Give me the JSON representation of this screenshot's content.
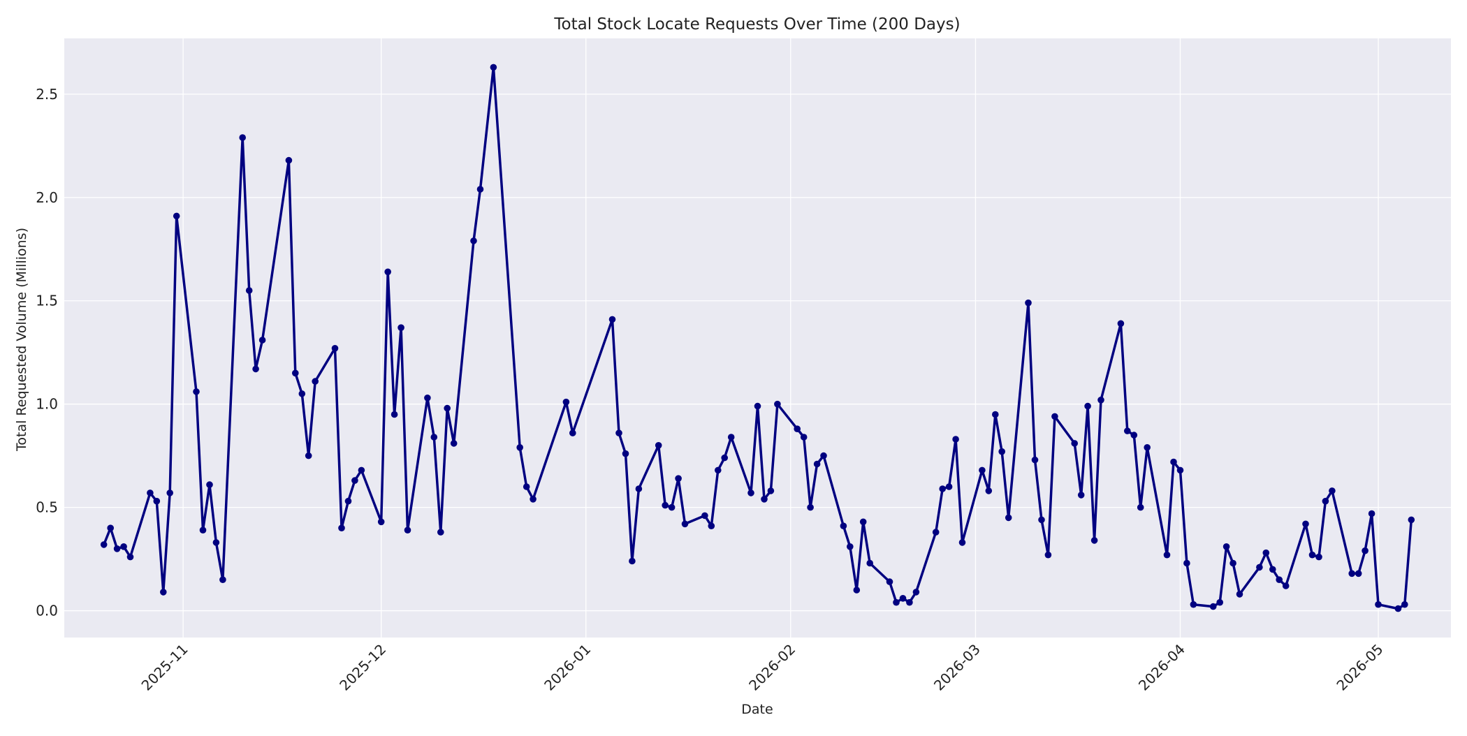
{
  "chart_data": {
    "type": "line",
    "title": "Total Stock Locate Requests Over Time (200 Days)",
    "xlabel": "Date",
    "ylabel": "Total Requested Volume (Millions)",
    "xlim": [
      "2025-10-14",
      "2026-05-12"
    ],
    "ylim": [
      -0.13,
      2.77
    ],
    "x_ticks": [
      "2025-11",
      "2025-12",
      "2026-01",
      "2026-02",
      "2026-03",
      "2026-04",
      "2026-05"
    ],
    "y_ticks": [
      "0.0",
      "0.5",
      "1.0",
      "1.5",
      "2.0",
      "2.5"
    ],
    "grid": true,
    "legend": "none",
    "colors": {
      "line": "#000080",
      "plot_bg": "#eaeaf2",
      "grid": "#ffffff"
    },
    "series": [
      {
        "points": [
          [
            "2025-10-20",
            0.32
          ],
          [
            "2025-10-21",
            0.4
          ],
          [
            "2025-10-22",
            0.3
          ],
          [
            "2025-10-23",
            0.31
          ],
          [
            "2025-10-24",
            0.26
          ],
          [
            "2025-10-27",
            0.57
          ],
          [
            "2025-10-28",
            0.53
          ],
          [
            "2025-10-29",
            0.09
          ],
          [
            "2025-10-30",
            0.57
          ],
          [
            "2025-10-31",
            1.91
          ],
          [
            "2025-11-03",
            1.06
          ],
          [
            "2025-11-04",
            0.39
          ],
          [
            "2025-11-05",
            0.61
          ],
          [
            "2025-11-06",
            0.33
          ],
          [
            "2025-11-07",
            0.15
          ],
          [
            "2025-11-10",
            2.29
          ],
          [
            "2025-11-11",
            1.55
          ],
          [
            "2025-11-12",
            1.17
          ],
          [
            "2025-11-13",
            1.31
          ],
          [
            "2025-11-17",
            2.18
          ],
          [
            "2025-11-18",
            1.15
          ],
          [
            "2025-11-19",
            1.05
          ],
          [
            "2025-11-20",
            0.75
          ],
          [
            "2025-11-21",
            1.11
          ],
          [
            "2025-11-24",
            1.27
          ],
          [
            "2025-11-25",
            0.4
          ],
          [
            "2025-11-26",
            0.53
          ],
          [
            "2025-11-27",
            0.63
          ],
          [
            "2025-11-28",
            0.68
          ],
          [
            "2025-12-01",
            0.43
          ],
          [
            "2025-12-02",
            1.64
          ],
          [
            "2025-12-03",
            0.95
          ],
          [
            "2025-12-04",
            1.37
          ],
          [
            "2025-12-05",
            0.39
          ],
          [
            "2025-12-08",
            1.03
          ],
          [
            "2025-12-09",
            0.84
          ],
          [
            "2025-12-10",
            0.38
          ],
          [
            "2025-12-11",
            0.98
          ],
          [
            "2025-12-12",
            0.81
          ],
          [
            "2025-12-15",
            1.79
          ],
          [
            "2025-12-16",
            2.04
          ],
          [
            "2025-12-18",
            2.63
          ],
          [
            "2025-12-22",
            0.79
          ],
          [
            "2025-12-23",
            0.6
          ],
          [
            "2025-12-24",
            0.54
          ],
          [
            "2025-12-29",
            1.01
          ],
          [
            "2025-12-30",
            0.86
          ],
          [
            "2026-01-05",
            1.41
          ],
          [
            "2026-01-06",
            0.86
          ],
          [
            "2026-01-07",
            0.76
          ],
          [
            "2026-01-08",
            0.24
          ],
          [
            "2026-01-09",
            0.59
          ],
          [
            "2026-01-12",
            0.8
          ],
          [
            "2026-01-13",
            0.51
          ],
          [
            "2026-01-14",
            0.5
          ],
          [
            "2026-01-15",
            0.64
          ],
          [
            "2026-01-16",
            0.42
          ],
          [
            "2026-01-19",
            0.46
          ],
          [
            "2026-01-20",
            0.41
          ],
          [
            "2026-01-21",
            0.68
          ],
          [
            "2026-01-22",
            0.74
          ],
          [
            "2026-01-23",
            0.84
          ],
          [
            "2026-01-26",
            0.57
          ],
          [
            "2026-01-27",
            0.99
          ],
          [
            "2026-01-28",
            0.54
          ],
          [
            "2026-01-29",
            0.58
          ],
          [
            "2026-01-30",
            1.0
          ],
          [
            "2026-02-02",
            0.88
          ],
          [
            "2026-02-03",
            0.84
          ],
          [
            "2026-02-04",
            0.5
          ],
          [
            "2026-02-05",
            0.71
          ],
          [
            "2026-02-06",
            0.75
          ],
          [
            "2026-02-09",
            0.41
          ],
          [
            "2026-02-10",
            0.31
          ],
          [
            "2026-02-11",
            0.1
          ],
          [
            "2026-02-12",
            0.43
          ],
          [
            "2026-02-13",
            0.23
          ],
          [
            "2026-02-16",
            0.14
          ],
          [
            "2026-02-17",
            0.04
          ],
          [
            "2026-02-18",
            0.06
          ],
          [
            "2026-02-19",
            0.04
          ],
          [
            "2026-02-20",
            0.09
          ],
          [
            "2026-02-23",
            0.38
          ],
          [
            "2026-02-24",
            0.59
          ],
          [
            "2026-02-25",
            0.6
          ],
          [
            "2026-02-26",
            0.83
          ],
          [
            "2026-02-27",
            0.33
          ],
          [
            "2026-03-02",
            0.68
          ],
          [
            "2026-03-03",
            0.58
          ],
          [
            "2026-03-04",
            0.95
          ],
          [
            "2026-03-05",
            0.77
          ],
          [
            "2026-03-06",
            0.45
          ],
          [
            "2026-03-09",
            1.49
          ],
          [
            "2026-03-10",
            0.73
          ],
          [
            "2026-03-11",
            0.44
          ],
          [
            "2026-03-12",
            0.27
          ],
          [
            "2026-03-13",
            0.94
          ],
          [
            "2026-03-16",
            0.81
          ],
          [
            "2026-03-17",
            0.56
          ],
          [
            "2026-03-18",
            0.99
          ],
          [
            "2026-03-19",
            0.34
          ],
          [
            "2026-03-20",
            1.02
          ],
          [
            "2026-03-23",
            1.39
          ],
          [
            "2026-03-24",
            0.87
          ],
          [
            "2026-03-25",
            0.85
          ],
          [
            "2026-03-26",
            0.5
          ],
          [
            "2026-03-27",
            0.79
          ],
          [
            "2026-03-30",
            0.27
          ],
          [
            "2026-03-31",
            0.72
          ],
          [
            "2026-04-01",
            0.68
          ],
          [
            "2026-04-02",
            0.23
          ],
          [
            "2026-04-03",
            0.03
          ],
          [
            "2026-04-06",
            0.02
          ],
          [
            "2026-04-07",
            0.04
          ],
          [
            "2026-04-08",
            0.31
          ],
          [
            "2026-04-09",
            0.23
          ],
          [
            "2026-04-10",
            0.08
          ],
          [
            "2026-04-13",
            0.21
          ],
          [
            "2026-04-14",
            0.28
          ],
          [
            "2026-04-15",
            0.2
          ],
          [
            "2026-04-16",
            0.15
          ],
          [
            "2026-04-17",
            0.12
          ],
          [
            "2026-04-20",
            0.42
          ],
          [
            "2026-04-21",
            0.27
          ],
          [
            "2026-04-22",
            0.26
          ],
          [
            "2026-04-23",
            0.53
          ],
          [
            "2026-04-24",
            0.58
          ],
          [
            "2026-04-27",
            0.18
          ],
          [
            "2026-04-28",
            0.18
          ],
          [
            "2026-04-29",
            0.29
          ],
          [
            "2026-04-30",
            0.47
          ],
          [
            "2026-05-01",
            0.03
          ],
          [
            "2026-05-04",
            0.01
          ],
          [
            "2026-05-05",
            0.03
          ],
          [
            "2026-05-06",
            0.44
          ]
        ]
      }
    ]
  }
}
